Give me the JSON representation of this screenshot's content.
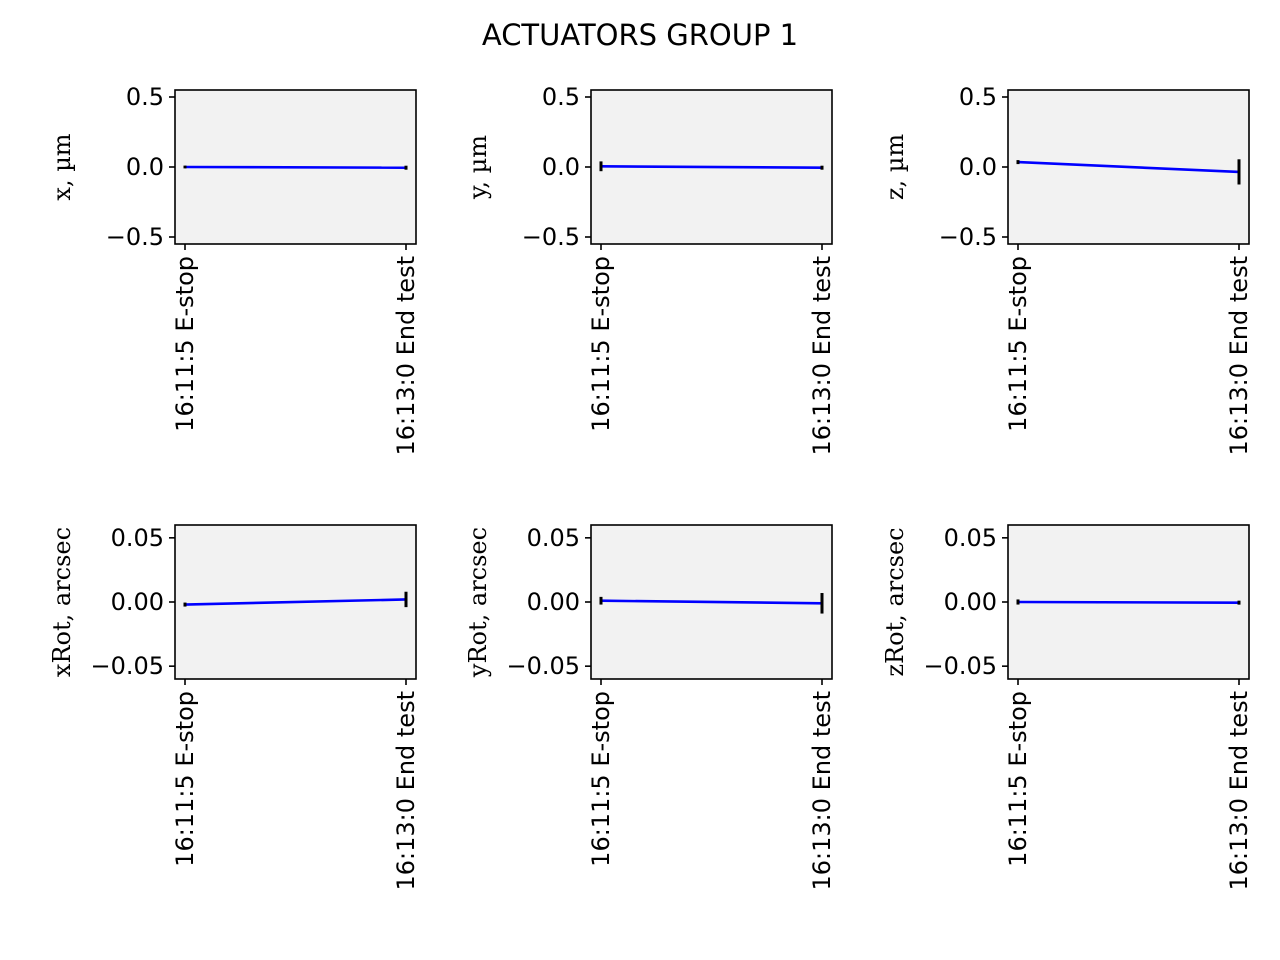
{
  "figure": {
    "title": "ACTUATORS GROUP 1"
  },
  "colors": {
    "plot_background": "#f2f2f2",
    "line": "#0000ff",
    "error_bar": "#000000"
  },
  "chart_data": [
    {
      "type": "line",
      "ylabel": "x, µm",
      "categories": [
        "16:11:5 E-stop",
        "16:13:0 End test"
      ],
      "values": [
        0.0,
        -0.005
      ],
      "errors": [
        0.01,
        0.0
      ],
      "ylim": [
        -0.55,
        0.55
      ],
      "yticks": [
        0.5,
        0.0,
        -0.5
      ],
      "yticklabels": [
        "0.5",
        "0.0",
        "−0.5"
      ],
      "grid": false
    },
    {
      "type": "line",
      "ylabel": "y, µm",
      "categories": [
        "16:11:5 E-stop",
        "16:13:0 End test"
      ],
      "values": [
        0.005,
        -0.005
      ],
      "errors": [
        0.035,
        0.0
      ],
      "ylim": [
        -0.55,
        0.55
      ],
      "yticks": [
        0.5,
        0.0,
        -0.5
      ],
      "yticklabels": [
        "0.5",
        "0.0",
        "−0.5"
      ],
      "grid": false
    },
    {
      "type": "line",
      "ylabel": "z, µm",
      "categories": [
        "16:11:5 E-stop",
        "16:13:0 End test"
      ],
      "values": [
        0.035,
        -0.035
      ],
      "errors": [
        0.0,
        0.09
      ],
      "ylim": [
        -0.55,
        0.55
      ],
      "yticks": [
        0.5,
        0.0,
        -0.5
      ],
      "yticklabels": [
        "0.5",
        "0.0",
        "−0.5"
      ],
      "grid": false
    },
    {
      "type": "line",
      "ylabel": "xRot,  arcsec",
      "categories": [
        "16:11:5 E-stop",
        "16:13:0 End test"
      ],
      "values": [
        -0.002,
        0.002
      ],
      "errors": [
        0.0,
        0.006
      ],
      "ylim": [
        -0.06,
        0.06
      ],
      "yticks": [
        0.05,
        0.0,
        -0.05
      ],
      "yticklabels": [
        "0.05",
        "0.00",
        "−0.05"
      ],
      "grid": false
    },
    {
      "type": "line",
      "ylabel": "yRot,  arcsec",
      "categories": [
        "16:11:5 E-stop",
        "16:13:0 End test"
      ],
      "values": [
        0.001,
        -0.001
      ],
      "errors": [
        0.003,
        0.008
      ],
      "ylim": [
        -0.06,
        0.06
      ],
      "yticks": [
        0.05,
        0.0,
        -0.05
      ],
      "yticklabels": [
        "0.05",
        "0.00",
        "−0.05"
      ],
      "grid": false
    },
    {
      "type": "line",
      "ylabel": "zRot,  arcsec",
      "categories": [
        "16:11:5 E-stop",
        "16:13:0 End test"
      ],
      "values": [
        0.0,
        -0.0005
      ],
      "errors": [
        0.002,
        0.0
      ],
      "ylim": [
        -0.06,
        0.06
      ],
      "yticks": [
        0.05,
        0.0,
        -0.05
      ],
      "yticklabels": [
        "0.05",
        "0.00",
        "−0.05"
      ],
      "grid": false
    }
  ]
}
